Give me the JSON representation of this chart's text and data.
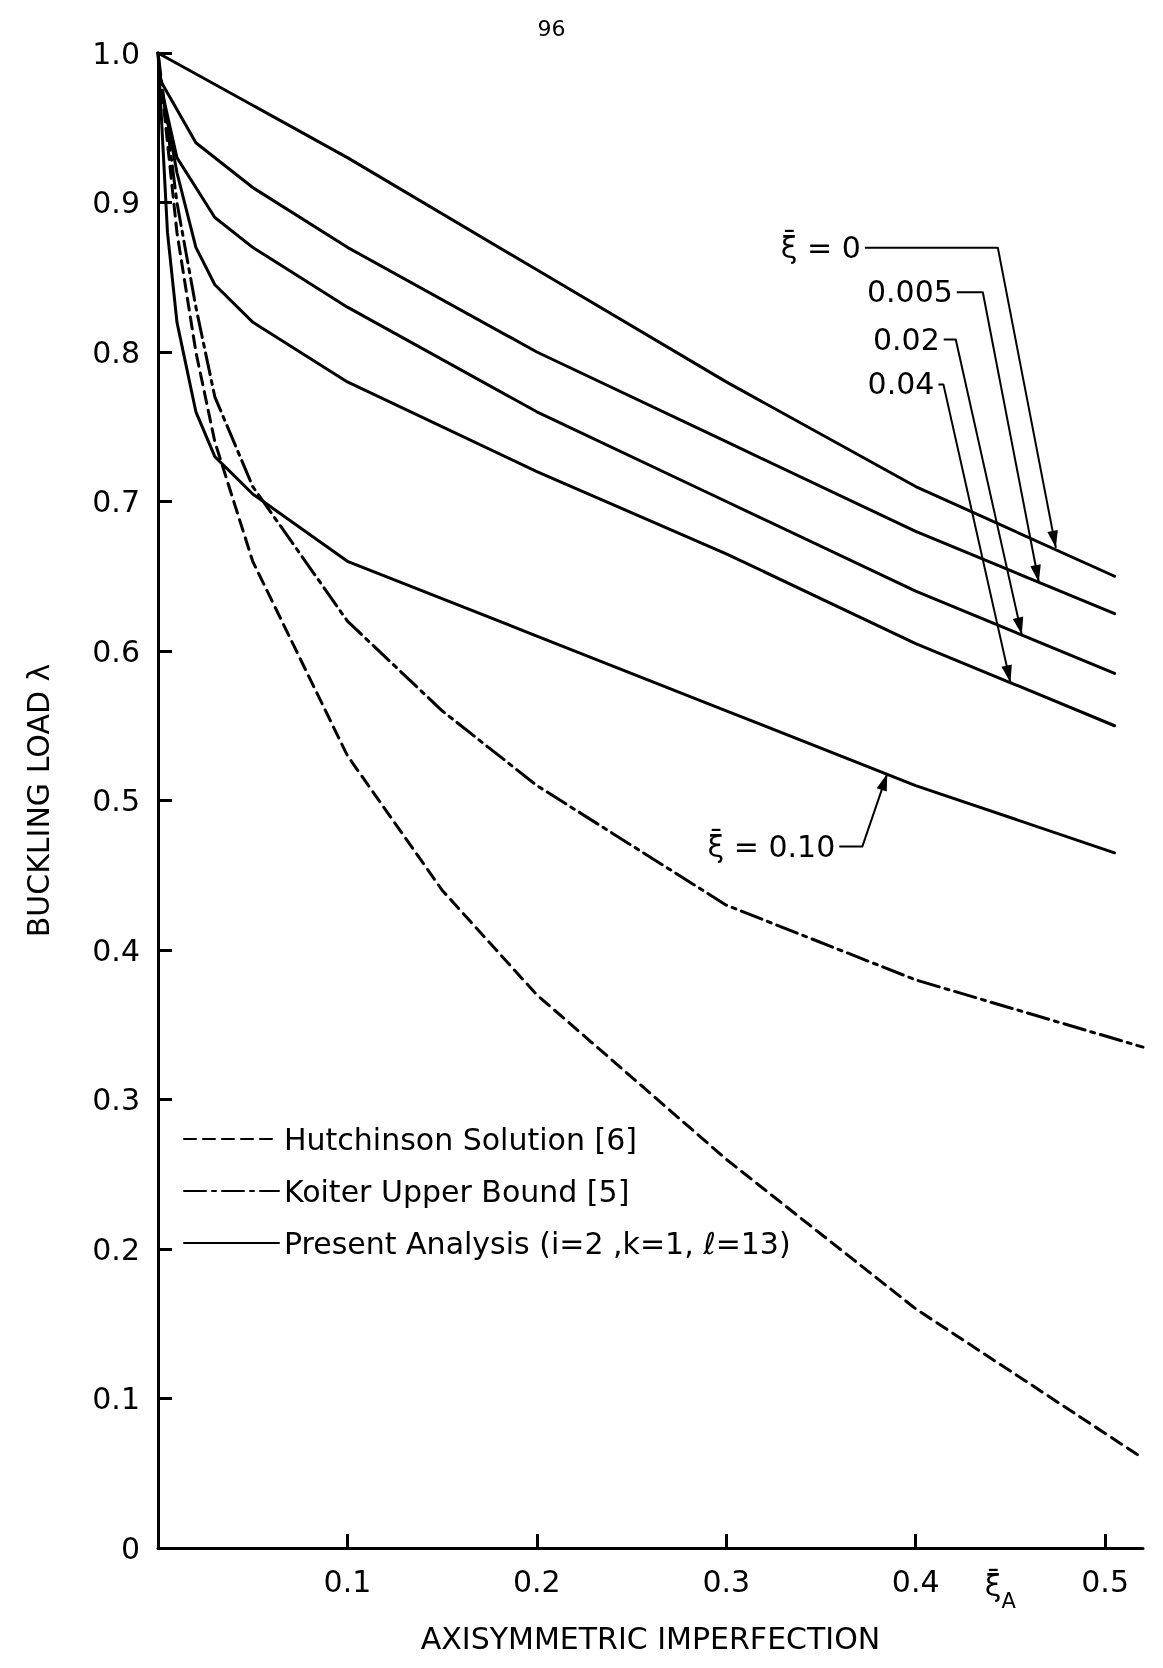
{
  "chart_data": {
    "type": "line",
    "xlabel": "AXISYMMETRIC IMPERFECTION",
    "ylabel": "BUCKLING LOAD λ",
    "xlim": [
      0,
      0.52
    ],
    "ylim": [
      0,
      1.0
    ],
    "xticks": [
      {
        "value": 0,
        "label": null
      },
      0.1,
      0.2,
      0.3,
      0.4,
      0.5
    ],
    "yticks": [
      0,
      0.1,
      0.2,
      0.3,
      0.4,
      0.5,
      0.6,
      0.7,
      0.8,
      0.9,
      {
        "value": 1,
        "label": "1.0"
      }
    ],
    "grid": false,
    "legend": "bottom left",
    "marker": "none",
    "series": [
      {
        "name": "Hutchinson Solution [6]",
        "color": "#000000",
        "line_style": "dashed",
        "x": [
          0,
          0.01,
          0.02,
          0.03,
          0.05,
          0.1,
          0.15,
          0.2,
          0.3,
          0.4,
          0.52
        ],
        "values": [
          1.0,
          0.88,
          0.8,
          0.74,
          0.66,
          0.53,
          0.44,
          0.37,
          0.26,
          0.16,
          0.06
        ]
      },
      {
        "name": "Koiter Upper Bound [5]",
        "color": "#000000",
        "line_style": "dashdot",
        "x": [
          0,
          0.01,
          0.02,
          0.03,
          0.05,
          0.1,
          0.15,
          0.2,
          0.3,
          0.4,
          0.52
        ],
        "values": [
          1.0,
          0.9,
          0.83,
          0.77,
          0.71,
          0.62,
          0.56,
          0.51,
          0.43,
          0.38,
          0.335
        ]
      },
      {
        "name": "Present Analysis (i=2 ,k=1, ℓ=13)",
        "color": "#000000",
        "line_style": "solid",
        "x": [
          0,
          0.1,
          0.2,
          0.3,
          0.4,
          0.505
        ],
        "values": [
          1.0,
          0.93,
          0.855,
          0.78,
          0.71,
          0.65
        ]
      },
      {
        "color": "#000000",
        "line_style": "solid",
        "x": [
          0.002,
          0.02,
          0.05,
          0.1,
          0.2,
          0.3,
          0.4,
          0.505
        ],
        "values": [
          0.98,
          0.94,
          0.91,
          0.87,
          0.8,
          0.74,
          0.68,
          0.625
        ]
      },
      {
        "color": "#000000",
        "line_style": "solid",
        "x": [
          0.002,
          0.01,
          0.03,
          0.05,
          0.1,
          0.2,
          0.3,
          0.4,
          0.505
        ],
        "values": [
          0.975,
          0.93,
          0.89,
          0.87,
          0.83,
          0.76,
          0.7,
          0.64,
          0.585
        ]
      },
      {
        "color": "#000000",
        "line_style": "solid",
        "x": [
          0.002,
          0.01,
          0.02,
          0.03,
          0.05,
          0.1,
          0.2,
          0.3,
          0.4,
          0.505
        ],
        "values": [
          0.975,
          0.92,
          0.87,
          0.845,
          0.82,
          0.78,
          0.72,
          0.665,
          0.605,
          0.55
        ]
      },
      {
        "color": "#000000",
        "line_style": "solid",
        "x": [
          0,
          0.005,
          0.01,
          0.02,
          0.03,
          0.05,
          0.1,
          0.2,
          0.3,
          0.4,
          0.505
        ],
        "values": [
          1.0,
          0.88,
          0.82,
          0.76,
          0.73,
          0.705,
          0.66,
          0.61,
          0.56,
          0.51,
          0.465
        ]
      }
    ],
    "annotations": [
      "96",
      "ξ̄$_{A}$",
      {
        "text": "ξ̄ = 0",
        "x": 0.474,
        "y": 0.669
      },
      {
        "text": "0.005",
        "x": 0.465,
        "y": 0.646
      },
      {
        "text": "0.02",
        "x": 0.456,
        "y": 0.611
      },
      {
        "text": "0.04",
        "x": 0.45,
        "y": 0.579
      },
      {
        "text": "ξ̄ = 0.10",
        "x": 0.385,
        "y": 0.518
      }
    ]
  }
}
